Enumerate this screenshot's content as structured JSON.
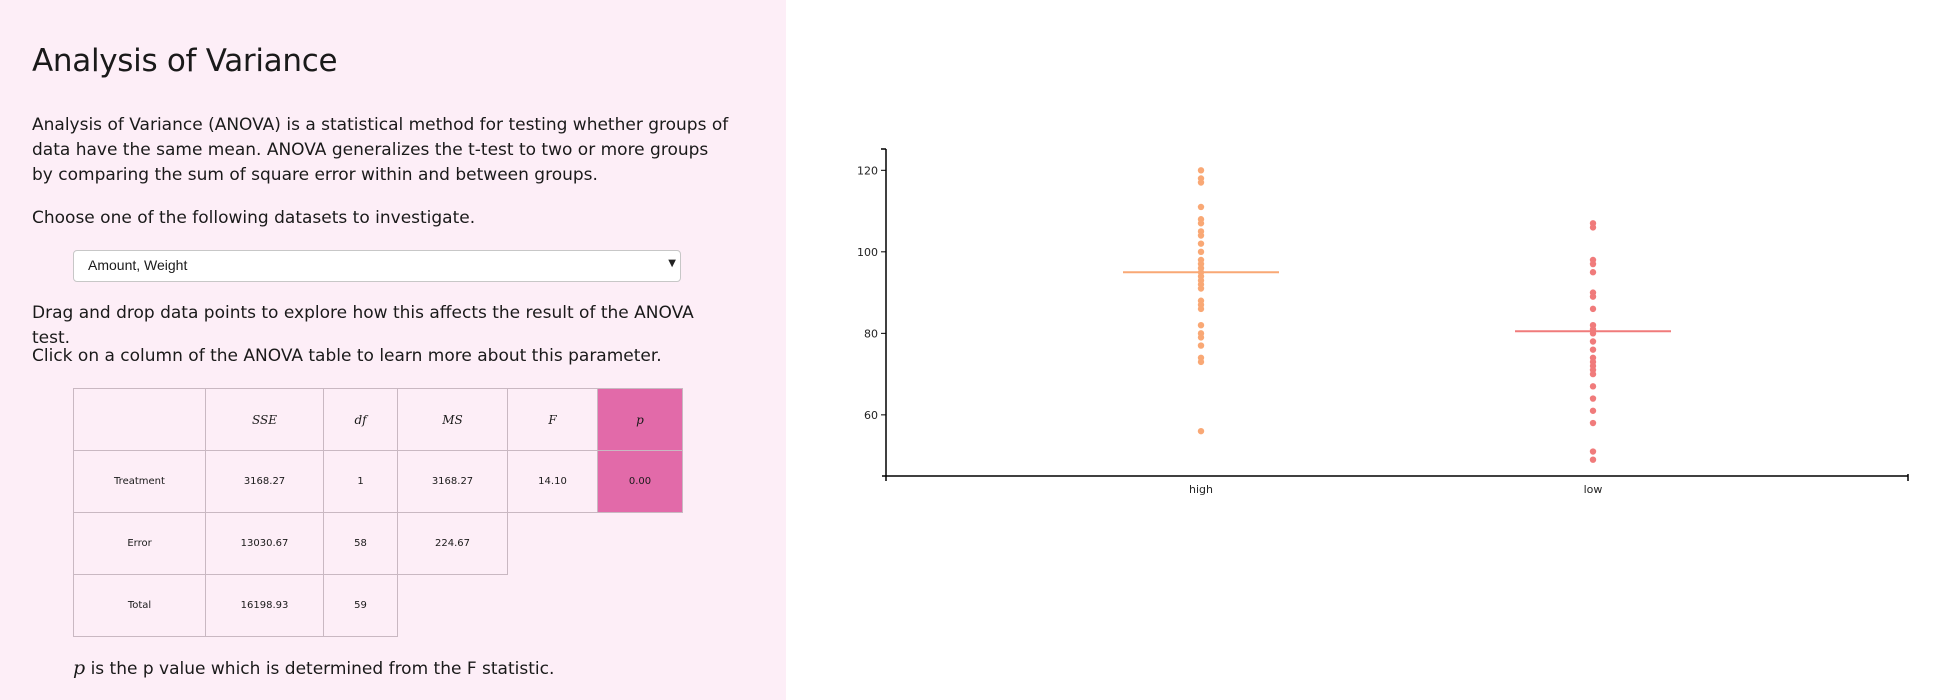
{
  "page": {
    "title": "Analysis of Variance",
    "intro": "Analysis of Variance (ANOVA) is a statistical method for testing whether groups of data have the same mean. ANOVA generalizes the t-test to two or more groups by comparing the sum of square error within and between groups.",
    "choose_prompt": "Choose one of the following datasets to investigate.",
    "drag_prompt": "Drag and drop data points to explore how this affects the result of the ANOVA test.",
    "click_prompt": "Click on a column of the ANOVA table to learn more about this parameter.",
    "note_symbol": "p",
    "note_text": " is the p value which is determined from the F statistic."
  },
  "dataset_select": {
    "selected": "Amount, Weight"
  },
  "anova_table": {
    "headers": [
      "",
      "SSE",
      "df",
      "MS",
      "F",
      "p"
    ],
    "rows": [
      {
        "label": "Treatment",
        "sse": "3168.27",
        "df": "1",
        "ms": "3168.27",
        "f": "14.10",
        "p": "0.00"
      },
      {
        "label": "Error",
        "sse": "13030.67",
        "df": "58",
        "ms": "224.67"
      },
      {
        "label": "Total",
        "sse": "16198.93",
        "df": "59"
      }
    ],
    "highlight_color": "#e26aa9"
  },
  "chart_data": {
    "type": "scatter",
    "categories": [
      "high",
      "low"
    ],
    "y_ticks": [
      60,
      80,
      100,
      120
    ],
    "ylim": [
      45,
      124
    ],
    "series": [
      {
        "category": "high",
        "color": "#f9a875",
        "mean": 95,
        "values": [
          120,
          118,
          117,
          111,
          108,
          107,
          105,
          104,
          102,
          100,
          98,
          97,
          96,
          95,
          94,
          93,
          92,
          91,
          88,
          87,
          86,
          82,
          80,
          79,
          77,
          74,
          73,
          56
        ]
      },
      {
        "category": "low",
        "color": "#f07b7b",
        "mean": 80.5,
        "values": [
          107,
          106,
          98,
          97,
          95,
          90,
          89,
          86,
          82,
          81,
          80,
          78,
          76,
          74,
          73,
          72,
          71,
          70,
          67,
          64,
          61,
          58,
          51,
          49
        ]
      }
    ]
  }
}
